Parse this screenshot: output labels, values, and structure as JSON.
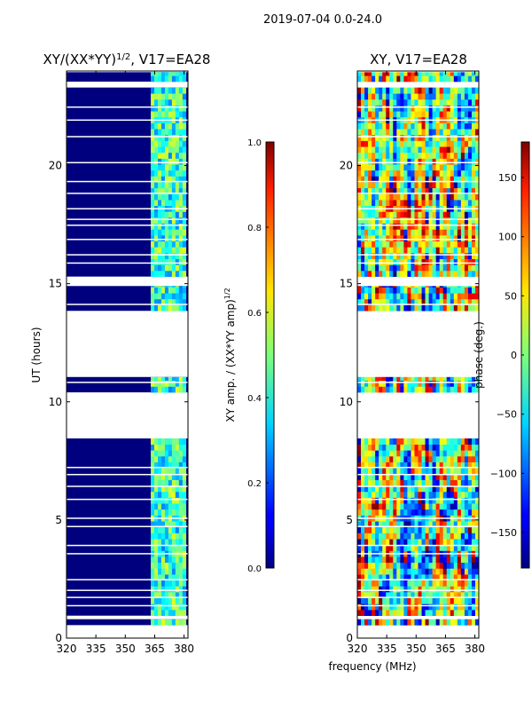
{
  "figure_title": "2019-07-04 0.0-24.0",
  "chart_data": [
    {
      "type": "heatmap",
      "title": "XY/(XX*YY)^1/2, V17=EA28",
      "title_base": "XY/(XX*YY)",
      "title_exponent": "1/2",
      "title_suffix": ", V17=EA28",
      "xlabel": "",
      "ylabel": "UT (hours)",
      "xlim": [
        320,
        382
      ],
      "ylim": [
        0,
        24
      ],
      "xticks": [
        320,
        335,
        350,
        365,
        380
      ],
      "yticks": [
        0,
        5,
        10,
        15,
        20
      ],
      "colormap": "jet",
      "background_value": 0.0,
      "bright_band_mhz": [
        363,
        380
      ],
      "bright_band_typical_value": 0.45,
      "data_rows_hours": [
        [
          0.55,
          0.8
        ],
        [
          0.95,
          8.45
        ],
        [
          10.4,
          11.05
        ],
        [
          13.85,
          14.9
        ],
        [
          15.3,
          23.3
        ],
        [
          23.55,
          23.95
        ]
      ],
      "gap_lines_hours": [
        1.4,
        1.75,
        2.05,
        2.5,
        3.6,
        3.95,
        4.75,
        5.1,
        5.9,
        6.45,
        6.95,
        7.25,
        10.85,
        14.15,
        15.9,
        16.25,
        16.9,
        17.5,
        17.75,
        18.2,
        18.85,
        19.35,
        20.15,
        21.25,
        21.95,
        22.5
      ]
    },
    {
      "type": "colorbar",
      "label": "XY amp. / (XX*YY amp)^1/2",
      "label_base": "XY amp. / (XX*YY amp)",
      "label_exponent": "1/2",
      "vmin": 0.0,
      "vmax": 1.0,
      "ticks": [
        "0.0",
        "0.2",
        "0.4",
        "0.6",
        "0.8",
        "1.0"
      ]
    },
    {
      "type": "heatmap",
      "title": "XY, V17=EA28",
      "xlabel": "frequency (MHz)",
      "ylabel": "",
      "xlim": [
        320,
        382
      ],
      "ylim": [
        0,
        24
      ],
      "xticks": [
        320,
        335,
        350,
        365,
        380
      ],
      "yticks": [
        0,
        5,
        10,
        15,
        20
      ],
      "colormap": "jet",
      "value_range_deg": [
        -180,
        180
      ],
      "data_rows_hours": [
        [
          0.55,
          0.8
        ],
        [
          0.95,
          8.45
        ],
        [
          10.4,
          11.05
        ],
        [
          13.85,
          14.9
        ],
        [
          15.3,
          23.3
        ],
        [
          23.55,
          23.95
        ]
      ],
      "gap_lines_hours": [
        1.4,
        1.75,
        2.05,
        2.5,
        3.6,
        3.95,
        4.75,
        5.1,
        5.9,
        6.45,
        6.95,
        7.25,
        10.85,
        14.15,
        15.9,
        16.25,
        16.9,
        17.5,
        17.75,
        18.2,
        18.85,
        19.35,
        20.15,
        21.25,
        21.95,
        22.5
      ]
    },
    {
      "type": "colorbar",
      "label": "phase (deg.)",
      "vmin": -180,
      "vmax": 180,
      "ticks": [
        "150",
        "100",
        "50",
        "0",
        "−50",
        "−100",
        "−150"
      ],
      "tick_values": [
        150,
        100,
        50,
        0,
        -50,
        -100,
        -150
      ]
    }
  ]
}
